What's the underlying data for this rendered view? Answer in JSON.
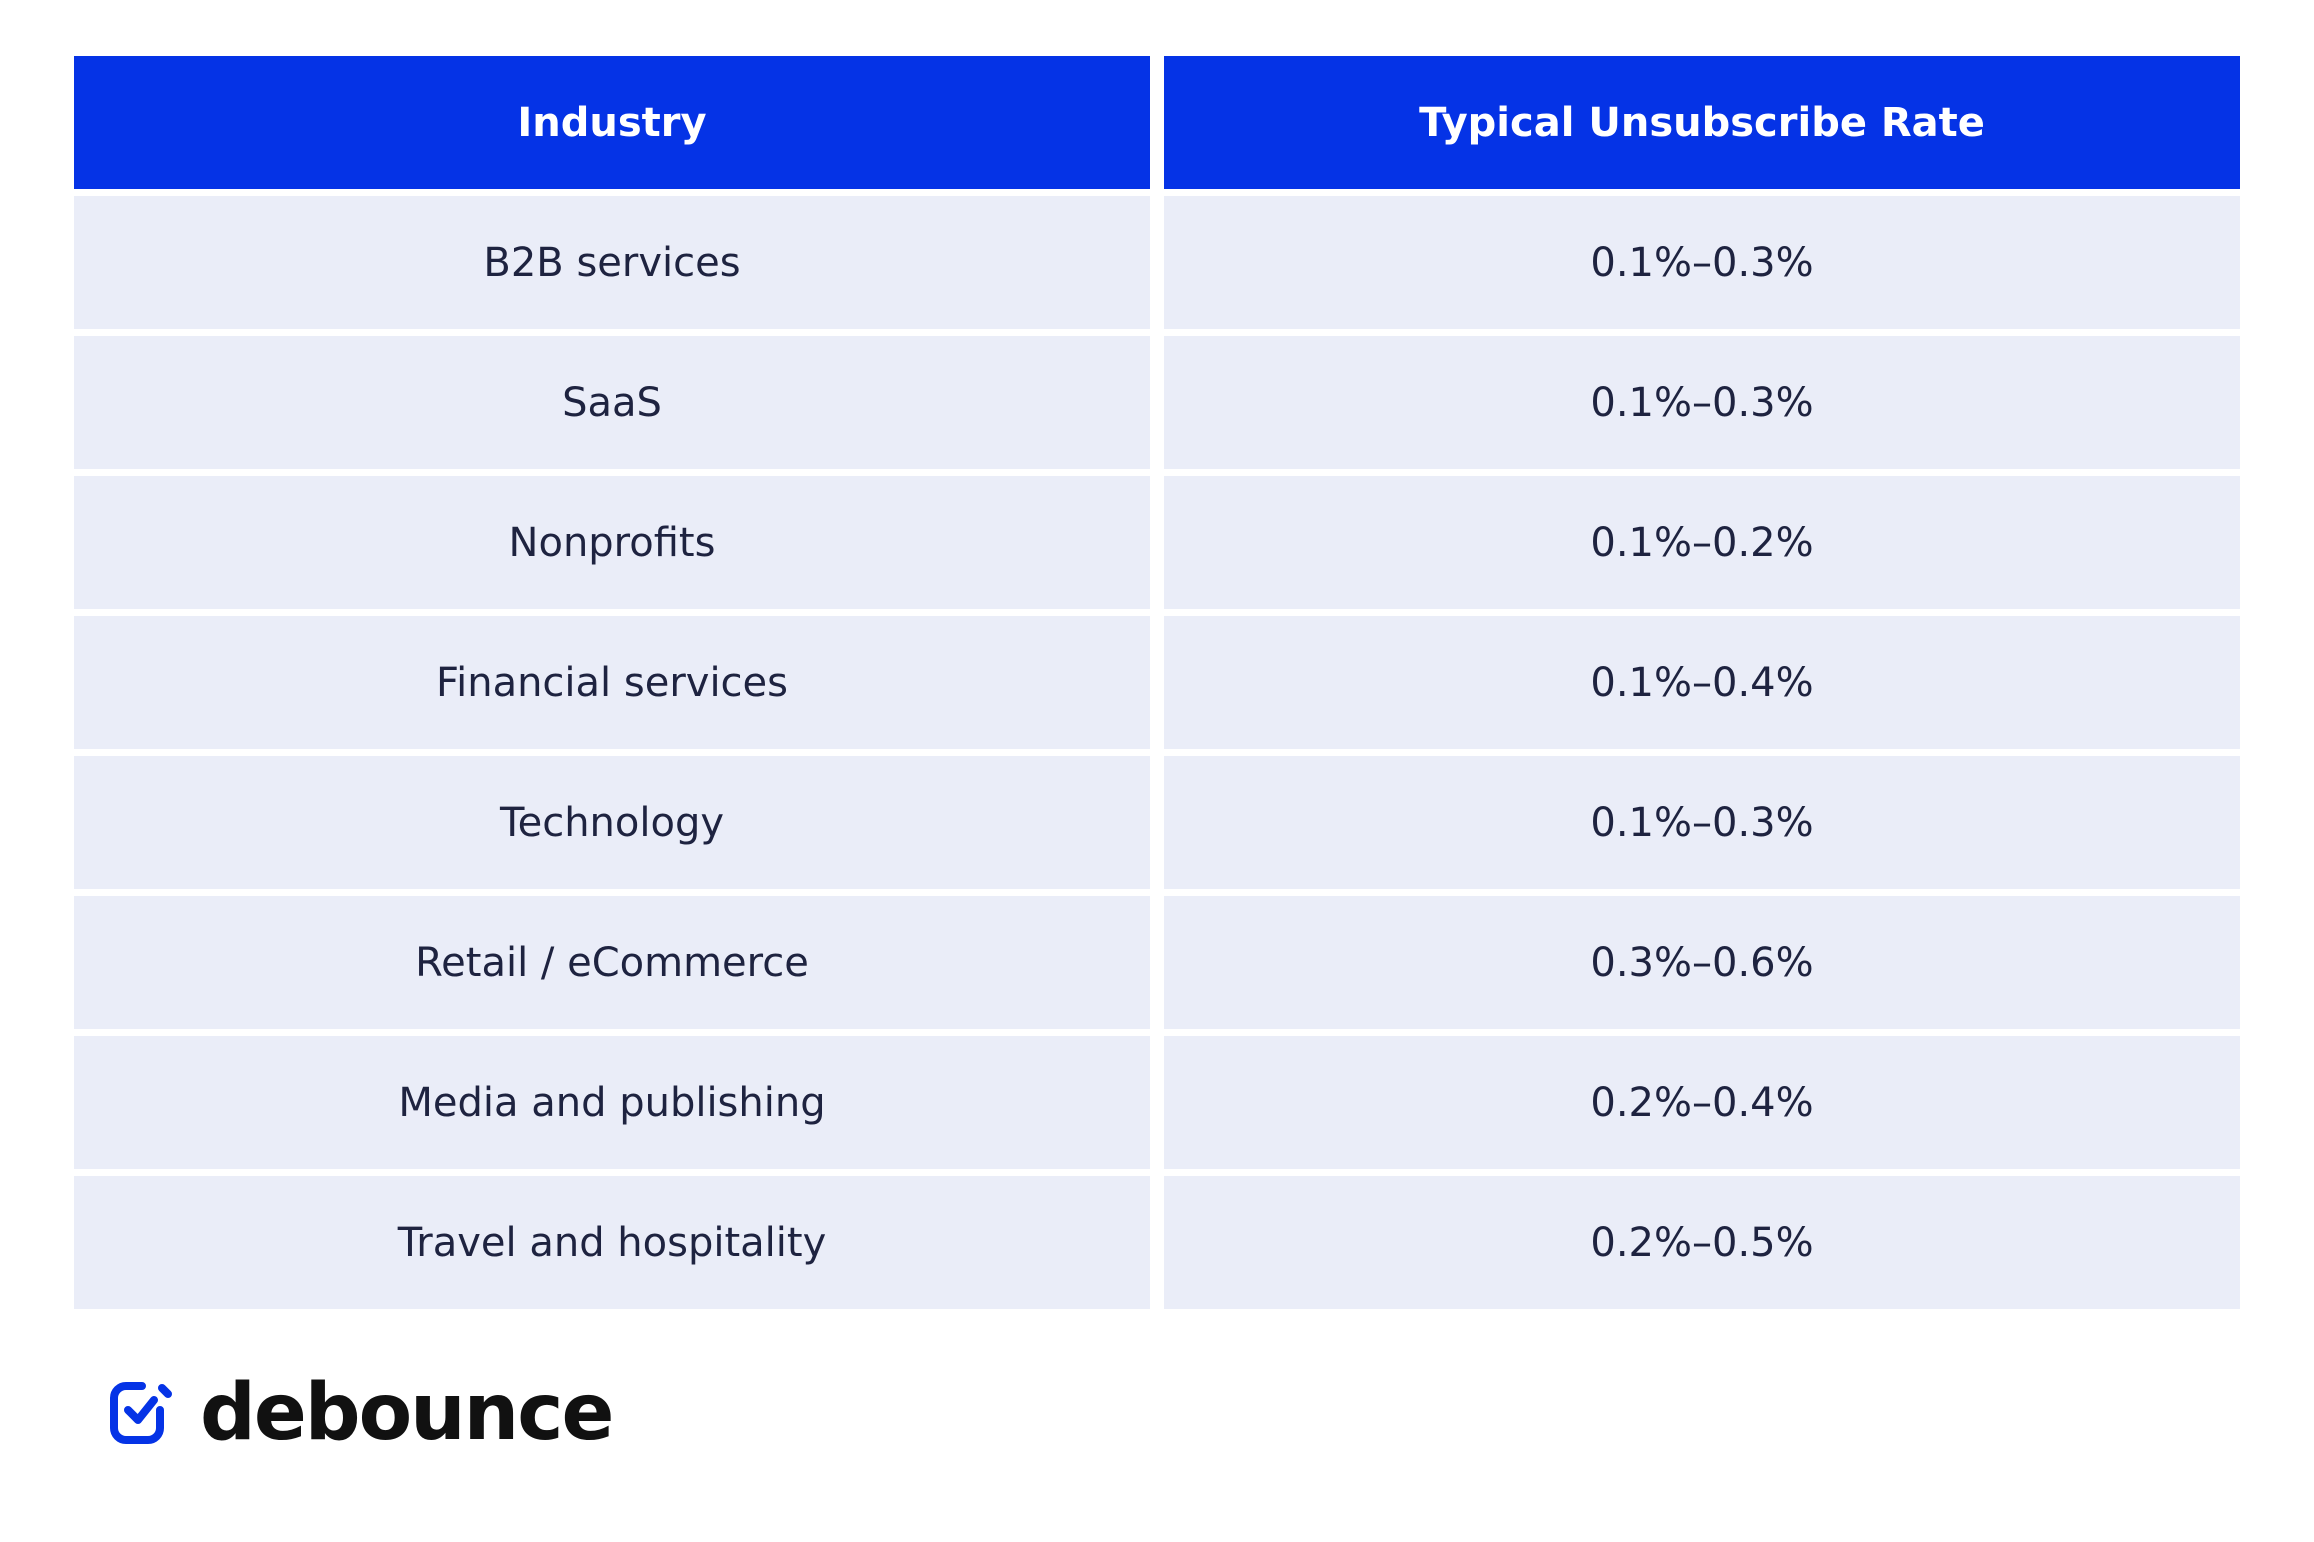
{
  "table": {
    "columns": [
      "Industry",
      "Typical Unsubscribe Rate"
    ],
    "rows": [
      [
        "B2B services",
        "0.1%–0.3%"
      ],
      [
        "SaaS",
        "0.1%–0.3%"
      ],
      [
        "Nonprofits",
        "0.1%–0.2%"
      ],
      [
        "Financial services",
        "0.1%–0.4%"
      ],
      [
        "Technology",
        "0.1%–0.3%"
      ],
      [
        "Retail / eCommerce",
        "0.3%–0.6%"
      ],
      [
        "Media and publishing",
        "0.2%–0.4%"
      ],
      [
        "Travel and hospitality",
        "0.2%–0.5%"
      ]
    ]
  },
  "logo": {
    "text": "debounce"
  }
}
